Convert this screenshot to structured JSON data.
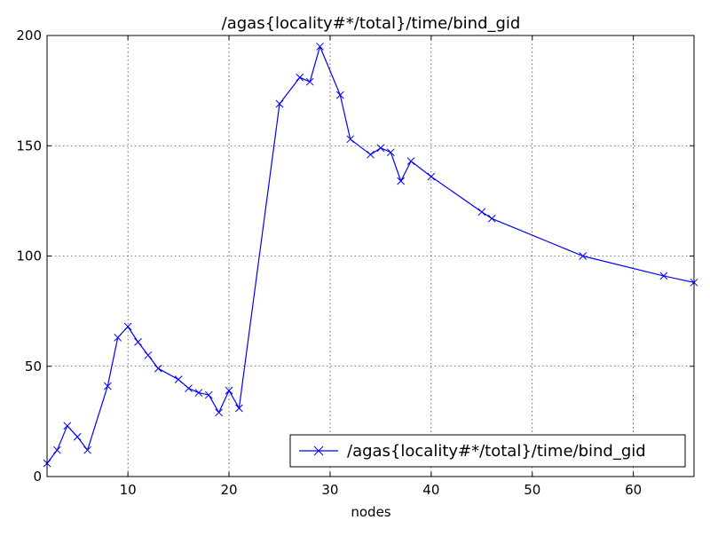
{
  "chart_data": {
    "type": "line",
    "title": "/agas{locality#*/total}/time/bind_gid",
    "xlabel": "nodes",
    "ylabel": "",
    "xlim": [
      2,
      66
    ],
    "ylim": [
      0,
      200
    ],
    "xticks": [
      10,
      20,
      30,
      40,
      50,
      60
    ],
    "yticks": [
      0,
      50,
      100,
      150,
      200
    ],
    "grid": true,
    "legend_position": "lower-right",
    "series": [
      {
        "name": "/agas{locality#*/total}/time/bind_gid",
        "color": "#0000ff",
        "marker": "x",
        "x": [
          2,
          3,
          4,
          5,
          6,
          8,
          9,
          10,
          11,
          12,
          13,
          15,
          16,
          17,
          18,
          19,
          20,
          21,
          25,
          27,
          28,
          29,
          31,
          32,
          34,
          35,
          36,
          37,
          38,
          40,
          45,
          46,
          55,
          63,
          66
        ],
        "y": [
          6,
          12,
          23,
          18,
          12,
          41,
          63,
          68,
          61,
          55,
          49,
          44,
          40,
          38,
          37,
          29,
          39,
          31,
          169,
          181,
          179,
          195,
          173,
          153,
          146,
          149,
          147,
          134,
          143,
          136,
          120,
          117,
          100,
          91,
          88
        ]
      }
    ]
  }
}
